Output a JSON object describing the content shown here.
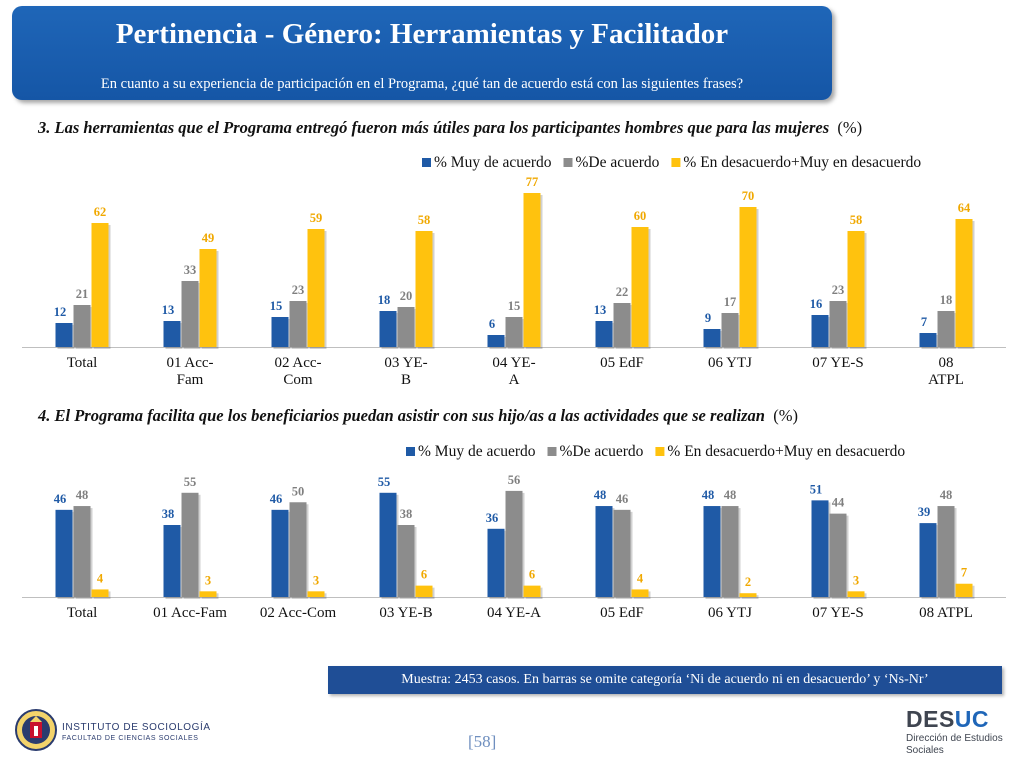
{
  "header": {
    "title": "Pertinencia - Género: Herramientas y Facilitador",
    "subtitle": "En cuanto a su experiencia de participación en el Programa, ¿qué tan de acuerdo está con las siguientes frases?"
  },
  "colors": {
    "series1": "#1f5aa6",
    "series2": "#8c8c8c",
    "series3": "#ffc20e",
    "banner": "#1f66b8",
    "footnote": "#1f4e96"
  },
  "chart_data": [
    {
      "type": "bar",
      "title": "3. Las herramientas que el Programa entregó fueron más útiles para los participantes hombres que para las mujeres",
      "unit": "(%)",
      "categories": [
        "Total",
        "01 Acc-Fam",
        "02 Acc-Com",
        "03 YE-B",
        "04 YE-A",
        "05 EdF",
        "06 YTJ",
        "07 YE-S",
        "08 ATPL"
      ],
      "category_lines": [
        [
          "Total"
        ],
        [
          "01 Acc-",
          "Fam"
        ],
        [
          "02 Acc-",
          "Com"
        ],
        [
          "03 YE-",
          "B"
        ],
        [
          "04 YE-",
          "A"
        ],
        [
          "05 EdF"
        ],
        [
          "06 YTJ"
        ],
        [
          "07 YE-S"
        ],
        [
          "08",
          "ATPL"
        ]
      ],
      "series": [
        {
          "name": "% Muy de acuerdo",
          "values": [
            12,
            13,
            15,
            18,
            6,
            13,
            9,
            16,
            7
          ]
        },
        {
          "name": "%De acuerdo",
          "values": [
            21,
            33,
            23,
            20,
            15,
            22,
            17,
            23,
            18
          ]
        },
        {
          "name": "% En desacuerdo+Muy en desacuerdo",
          "values": [
            62,
            49,
            59,
            58,
            77,
            60,
            70,
            58,
            64
          ]
        }
      ],
      "ylim": [
        0,
        80
      ],
      "legend": "top-right"
    },
    {
      "type": "bar",
      "title": "4. El Programa facilita que los beneficiarios puedan asistir con sus hijo/as a las actividades que se realizan",
      "unit": "(%)",
      "categories": [
        "Total",
        "01 Acc-Fam",
        "02 Acc-Com",
        "03 YE-B",
        "04 YE-A",
        "05 EdF",
        "06 YTJ",
        "07 YE-S",
        "08 ATPL"
      ],
      "category_lines": [
        [
          "Total"
        ],
        [
          "01 Acc-Fam"
        ],
        [
          "02 Acc-Com"
        ],
        [
          "03 YE-B"
        ],
        [
          "04 YE-A"
        ],
        [
          "05 EdF"
        ],
        [
          "06 YTJ"
        ],
        [
          "07 YE-S"
        ],
        [
          "08 ATPL"
        ]
      ],
      "series": [
        {
          "name": "% Muy de acuerdo",
          "values": [
            46,
            38,
            46,
            55,
            36,
            48,
            48,
            51,
            39
          ]
        },
        {
          "name": "%De acuerdo",
          "values": [
            48,
            55,
            50,
            38,
            56,
            46,
            48,
            44,
            48
          ]
        },
        {
          "name": "% En desacuerdo+Muy en desacuerdo",
          "values": [
            4,
            3,
            3,
            6,
            6,
            4,
            2,
            3,
            7
          ]
        }
      ],
      "ylim": [
        0,
        57
      ],
      "legend": "top-right"
    }
  ],
  "footnote": "Muestra: 2453 casos. En barras se omite categoría ‘Ni de acuerdo ni en desacuerdo’ y ‘Ns-Nr’",
  "page_number": "[58]",
  "logos": {
    "left_name": "INSTITUTO DE SOCIOLOGÍA",
    "left_sub": "FACULTAD DE CIENCIAS SOCIALES",
    "right_name_a": "DES",
    "right_name_b": "UC",
    "right_sub": "Dirección de Estudios Sociales"
  }
}
